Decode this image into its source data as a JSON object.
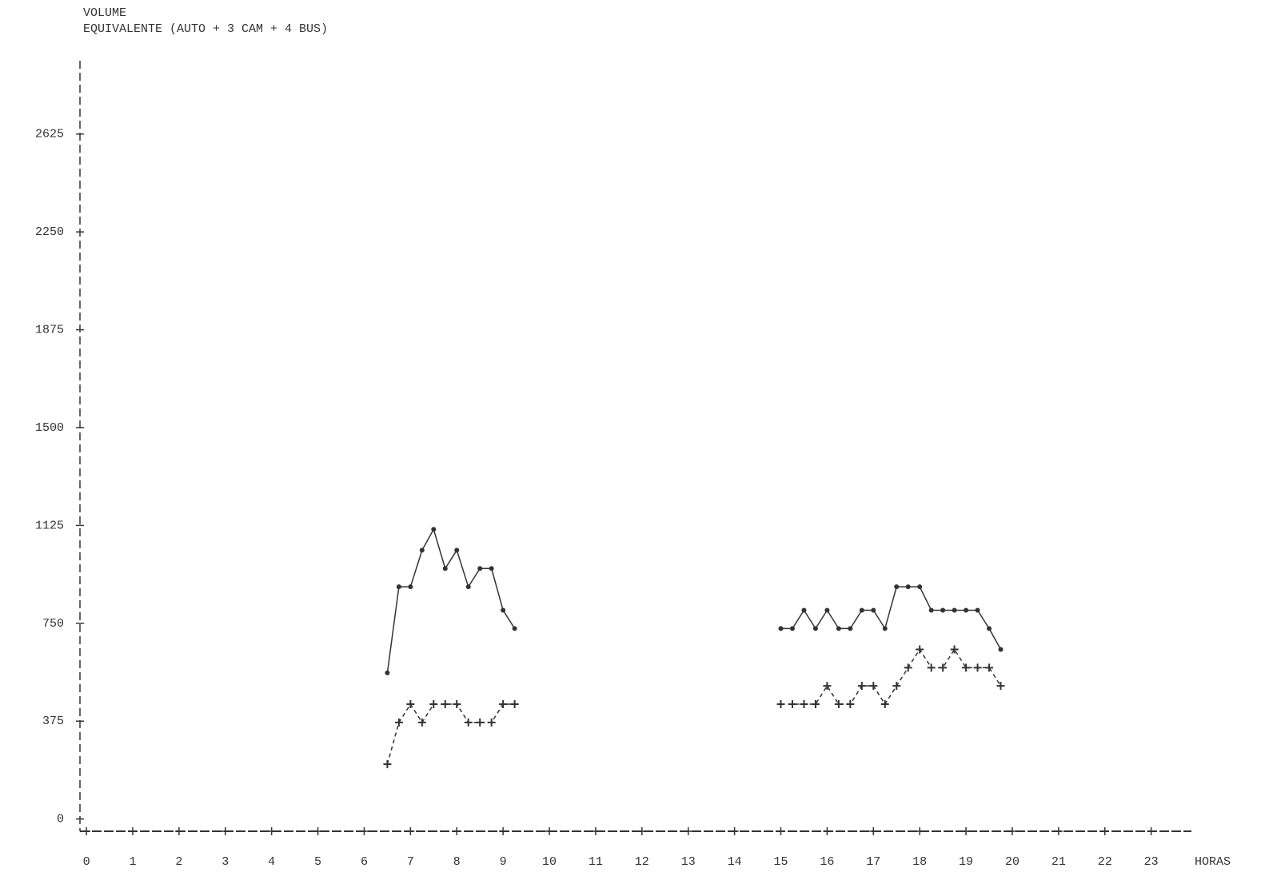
{
  "chart_data": {
    "type": "line",
    "title": "VOLUME",
    "subtitle": "EQUIVALENTE (AUTO + 3 CAM + 4 BUS)",
    "x_label": "HORAS",
    "xlim": [
      -0.14,
      23.87
    ],
    "xticks": [
      0,
      1,
      2,
      3,
      4,
      5,
      6,
      7,
      8,
      9,
      10,
      11,
      12,
      13,
      14,
      15,
      16,
      17,
      18,
      19,
      20,
      21,
      22,
      23
    ],
    "ylim": [
      -47,
      2906
    ],
    "yticks": [
      0,
      375,
      750,
      1125,
      1500,
      1875,
      2250,
      2625
    ],
    "color": "#333333",
    "series": [
      {
        "marker": "dot",
        "dash": false,
        "x": [
          6.5,
          6.75,
          7,
          7.25,
          7.5,
          7.75,
          8,
          8.25,
          8.5,
          8.75,
          9,
          9.25
        ],
        "values": [
          560,
          890,
          890,
          1030,
          1110,
          960,
          1030,
          890,
          960,
          960,
          800,
          730
        ]
      },
      {
        "marker": "plus",
        "dash": true,
        "x": [
          6.5,
          6.75,
          7,
          7.25,
          7.5,
          7.75,
          8,
          8.25,
          8.5,
          8.75,
          9,
          9.25
        ],
        "values": [
          210,
          370,
          440,
          370,
          440,
          440,
          440,
          370,
          370,
          370,
          440,
          440
        ]
      },
      {
        "marker": "dot",
        "dash": false,
        "x": [
          15,
          15.25,
          15.5,
          15.75,
          16,
          16.25,
          16.5,
          16.75,
          17,
          17.25,
          17.5,
          17.75,
          18,
          18.25,
          18.5,
          18.75,
          19,
          19.25,
          19.5,
          19.75
        ],
        "values": [
          730,
          730,
          800,
          730,
          800,
          730,
          730,
          800,
          800,
          730,
          890,
          890,
          890,
          800,
          800,
          800,
          800,
          800,
          730,
          650
        ]
      },
      {
        "marker": "plus",
        "dash": true,
        "x": [
          15,
          15.25,
          15.5,
          15.75,
          16,
          16.25,
          16.5,
          16.75,
          17,
          17.25,
          17.5,
          17.75,
          18,
          18.25,
          18.5,
          18.75,
          19,
          19.25,
          19.5,
          19.75
        ],
        "values": [
          440,
          440,
          440,
          440,
          510,
          440,
          440,
          510,
          510,
          440,
          510,
          580,
          650,
          580,
          580,
          650,
          580,
          580,
          580,
          510
        ]
      }
    ]
  }
}
